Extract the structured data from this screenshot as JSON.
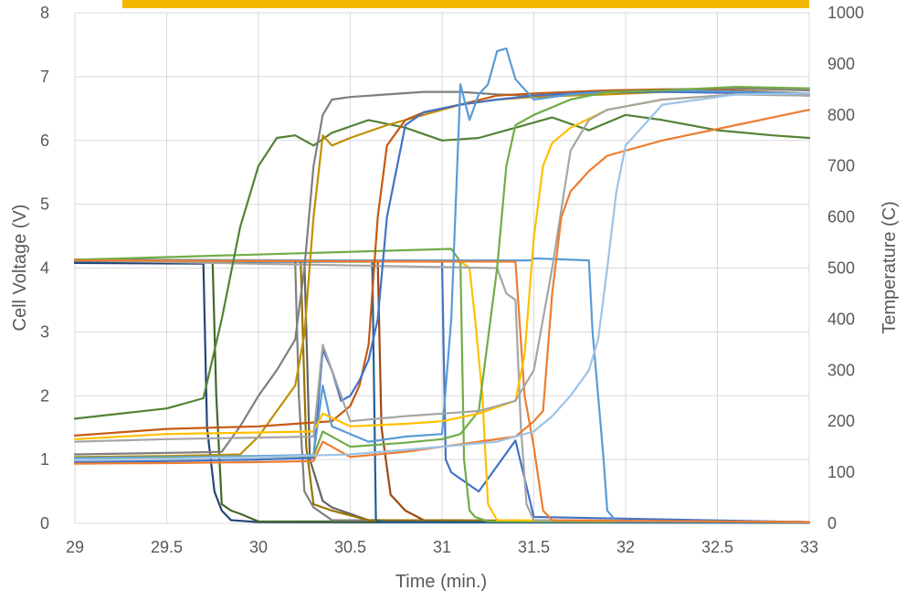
{
  "chart_data": {
    "type": "line",
    "title": "",
    "xlabel": "Time (min.)",
    "ylabel": "Cell Voltage (V)",
    "y2label": "Temperature (C)",
    "xlim": [
      29,
      33
    ],
    "ylim": [
      0,
      8
    ],
    "y2lim": [
      0,
      1000
    ],
    "grid": true,
    "legend": "none",
    "x_ticks": [
      "29",
      "29.5",
      "30",
      "30.5",
      "31",
      "31.5",
      "32",
      "32.5",
      "33"
    ],
    "y_ticks": [
      "0",
      "1",
      "2",
      "3",
      "4",
      "5",
      "6",
      "7",
      "8"
    ],
    "y2_ticks": [
      "0",
      "100",
      "200",
      "300",
      "400",
      "500",
      "600",
      "700",
      "800",
      "900",
      "1000"
    ],
    "banner_color": "#f5b800",
    "series": [
      {
        "axis": "left",
        "color": "#264478",
        "x": [
          29,
          29.7,
          29.72,
          29.76,
          29.8,
          29.85,
          30.0,
          33
        ],
        "y": [
          4.08,
          4.07,
          1.5,
          0.5,
          0.2,
          0.05,
          0.02,
          0.01
        ]
      },
      {
        "axis": "left",
        "color": "#43682b",
        "x": [
          29,
          29.75,
          29.77,
          29.8,
          29.85,
          29.9,
          30.0,
          33
        ],
        "y": [
          4.12,
          4.1,
          2.0,
          0.3,
          0.2,
          0.15,
          0.03,
          0.02
        ]
      },
      {
        "axis": "left",
        "color": "#7f7f7f",
        "x": [
          29,
          30.2,
          30.22,
          30.25,
          30.3,
          30.4,
          33
        ],
        "y": [
          4.12,
          4.11,
          2.0,
          0.5,
          0.25,
          0.05,
          0.02
        ]
      },
      {
        "axis": "left",
        "color": "#9e480e",
        "x": [
          29,
          30.65,
          30.67,
          30.72,
          30.8,
          30.9,
          33
        ],
        "y": [
          4.13,
          4.11,
          1.5,
          0.45,
          0.2,
          0.05,
          0.02
        ]
      },
      {
        "axis": "left",
        "color": "#636363",
        "x": [
          29,
          30.25,
          30.28,
          30.35,
          30.4,
          30.6,
          33
        ],
        "y": [
          4.13,
          4.12,
          1.0,
          0.35,
          0.25,
          0.05,
          0.02
        ]
      },
      {
        "axis": "left",
        "color": "#997300",
        "x": [
          29,
          30.23,
          30.26,
          30.3,
          30.4,
          30.6,
          33
        ],
        "y": [
          4.12,
          4.11,
          1.2,
          0.3,
          0.2,
          0.05,
          0.02
        ]
      },
      {
        "axis": "left",
        "color": "#255e91",
        "x": [
          29,
          30.62,
          30.64,
          30.66,
          30.7,
          30.9,
          33
        ],
        "y": [
          4.1,
          4.1,
          0.05,
          0.03,
          0.02,
          0.02,
          0.01
        ]
      },
      {
        "axis": "left",
        "color": "#4472c4",
        "x": [
          29,
          31.0,
          31.02,
          31.05,
          31.1,
          31.2,
          31.4,
          31.5,
          33
        ],
        "y": [
          4.12,
          4.1,
          1.0,
          0.8,
          0.7,
          0.5,
          1.3,
          0.1,
          0.02
        ]
      },
      {
        "axis": "left",
        "color": "#70ad47",
        "x": [
          29,
          31.05,
          31.1,
          31.12,
          31.15,
          31.18,
          31.25,
          33
        ],
        "y": [
          4.13,
          4.3,
          4.1,
          1.0,
          0.2,
          0.1,
          0.03,
          0.02
        ]
      },
      {
        "axis": "left",
        "color": "#ffc000",
        "x": [
          29,
          31.1,
          31.15,
          31.18,
          31.22,
          31.25,
          31.3,
          33
        ],
        "y": [
          4.12,
          4.1,
          4.0,
          3.2,
          2.0,
          0.3,
          0.05,
          0.02
        ]
      },
      {
        "axis": "left",
        "color": "#a5a5a5",
        "x": [
          29,
          31.3,
          31.35,
          31.4,
          31.43,
          31.46,
          31.5,
          33
        ],
        "y": [
          4.12,
          4.0,
          3.6,
          3.5,
          1.5,
          0.3,
          0.05,
          0.02
        ]
      },
      {
        "axis": "left",
        "color": "#5b9bd5",
        "x": [
          29,
          31.48,
          31.5,
          31.52,
          31.8,
          31.82,
          31.85,
          31.88,
          31.9,
          31.95,
          33
        ],
        "y": [
          4.12,
          4.12,
          4.15,
          4.15,
          4.12,
          3.0,
          2.0,
          1.0,
          0.2,
          0.03,
          0.02
        ]
      },
      {
        "axis": "left",
        "color": "#ed7d31",
        "x": [
          29,
          31.4,
          31.45,
          31.5,
          31.55,
          31.6,
          33
        ],
        "y": [
          4.12,
          4.1,
          2.0,
          1.2,
          0.2,
          0.05,
          0.02
        ]
      },
      {
        "axis": "right",
        "color": "#548235",
        "x": [
          29,
          29.5,
          29.7,
          29.8,
          29.9,
          30.0,
          30.1,
          30.2,
          30.3,
          30.4,
          30.6,
          30.8,
          31.0,
          31.2,
          31.4,
          31.6,
          31.8,
          32.0,
          32.2,
          32.5,
          32.8,
          33
        ],
        "y": [
          205,
          225,
          245,
          400,
          580,
          700,
          755,
          760,
          740,
          765,
          790,
          775,
          750,
          755,
          775,
          795,
          770,
          800,
          790,
          770,
          760,
          755
        ]
      },
      {
        "axis": "right",
        "color": "#7f7f7f",
        "x": [
          29,
          29.5,
          29.8,
          29.9,
          30.0,
          30.1,
          30.2,
          30.25,
          30.3,
          30.35,
          30.4,
          30.5,
          30.7,
          30.9,
          31.1,
          31.3,
          31.5,
          31.7,
          31.9,
          32.2,
          32.6,
          33
        ],
        "y": [
          135,
          138,
          140,
          190,
          250,
          300,
          360,
          500,
          700,
          800,
          830,
          835,
          840,
          845,
          845,
          840,
          838,
          840,
          845,
          850,
          852,
          848
        ]
      },
      {
        "axis": "right",
        "color": "#bf9000",
        "x": [
          29,
          29.5,
          29.9,
          30.0,
          30.1,
          30.2,
          30.25,
          30.3,
          30.35,
          30.4,
          30.5,
          30.7,
          30.9,
          31.1,
          31.3,
          31.5,
          31.7,
          31.9,
          32.2,
          32.6,
          33
        ],
        "y": [
          130,
          132,
          135,
          170,
          220,
          270,
          370,
          600,
          760,
          740,
          755,
          780,
          800,
          820,
          830,
          835,
          838,
          840,
          845,
          848,
          842
        ]
      },
      {
        "axis": "right",
        "color": "#c55a11",
        "x": [
          29,
          29.5,
          30.0,
          30.2,
          30.4,
          30.5,
          30.55,
          30.6,
          30.65,
          30.7,
          30.8,
          30.9,
          31.1,
          31.3,
          31.5,
          31.7,
          31.9,
          32.2,
          32.6,
          33
        ],
        "y": [
          172,
          185,
          190,
          195,
          200,
          230,
          270,
          350,
          600,
          740,
          790,
          805,
          820,
          838,
          842,
          845,
          848,
          850,
          848,
          840
        ]
      },
      {
        "axis": "right",
        "color": "#4472c4",
        "x": [
          29,
          29.5,
          30.0,
          30.3,
          30.35,
          30.4,
          30.45,
          30.5,
          30.55,
          30.6,
          30.65,
          30.7,
          30.8,
          30.9,
          31.1,
          31.3,
          31.5,
          31.7,
          31.9,
          32.2,
          32.6,
          33
        ],
        "y": [
          120,
          122,
          125,
          128,
          340,
          300,
          240,
          250,
          280,
          320,
          400,
          600,
          780,
          805,
          820,
          830,
          838,
          842,
          845,
          845,
          843,
          838
        ]
      },
      {
        "axis": "right",
        "color": "#5b9bd5",
        "x": [
          29,
          29.5,
          30.0,
          30.3,
          30.35,
          30.4,
          30.6,
          30.8,
          31.0,
          31.05,
          31.1,
          31.15,
          31.2,
          31.25,
          31.3,
          31.35,
          31.4,
          31.5,
          31.7,
          31.9,
          32.2,
          32.6,
          33
        ],
        "y": [
          128,
          130,
          132,
          134,
          270,
          190,
          160,
          170,
          175,
          400,
          860,
          790,
          840,
          860,
          925,
          930,
          870,
          830,
          840,
          845,
          848,
          846,
          842
        ]
      },
      {
        "axis": "right",
        "color": "#70ad47",
        "x": [
          29,
          29.5,
          30.0,
          30.3,
          30.35,
          30.5,
          30.8,
          31.0,
          31.1,
          31.2,
          31.3,
          31.35,
          31.4,
          31.5,
          31.7,
          31.9,
          32.2,
          32.6,
          33
        ],
        "y": [
          125,
          128,
          130,
          132,
          180,
          150,
          158,
          165,
          175,
          220,
          500,
          700,
          780,
          800,
          830,
          845,
          848,
          855,
          852
        ]
      },
      {
        "axis": "right",
        "color": "#ffc000",
        "x": [
          29,
          29.5,
          30.0,
          30.3,
          30.35,
          30.5,
          30.8,
          31.0,
          31.2,
          31.4,
          31.45,
          31.5,
          31.55,
          31.6,
          31.7,
          31.9,
          32.2,
          32.6,
          33
        ],
        "y": [
          165,
          175,
          178,
          180,
          215,
          190,
          195,
          200,
          215,
          240,
          330,
          560,
          700,
          745,
          775,
          810,
          830,
          840,
          838
        ]
      },
      {
        "axis": "right",
        "color": "#a5a5a5",
        "x": [
          29,
          29.5,
          30.0,
          30.3,
          30.35,
          30.5,
          30.8,
          31.0,
          31.2,
          31.4,
          31.5,
          31.6,
          31.7,
          31.8,
          31.9,
          32.2,
          32.6,
          33
        ],
        "y": [
          160,
          165,
          168,
          170,
          350,
          200,
          210,
          215,
          220,
          240,
          300,
          500,
          730,
          790,
          810,
          830,
          840,
          838
        ]
      },
      {
        "axis": "right",
        "color": "#ed7d31",
        "x": [
          29,
          29.5,
          30.0,
          30.3,
          30.35,
          30.5,
          30.8,
          31.0,
          31.2,
          31.4,
          31.5,
          31.55,
          31.6,
          31.65,
          31.7,
          31.8,
          31.9,
          32.2,
          32.6,
          33
        ],
        "y": [
          117,
          118,
          120,
          122,
          160,
          130,
          140,
          150,
          160,
          170,
          200,
          220,
          450,
          600,
          650,
          690,
          720,
          750,
          780,
          810
        ]
      },
      {
        "axis": "right",
        "color": "#9dc3e6",
        "x": [
          29,
          29.5,
          30.0,
          30.5,
          31.0,
          31.3,
          31.5,
          31.6,
          31.7,
          31.8,
          31.85,
          31.9,
          31.95,
          32.0,
          32.2,
          32.6,
          33
        ],
        "y": [
          125,
          127,
          130,
          135,
          150,
          160,
          180,
          210,
          250,
          300,
          360,
          500,
          650,
          740,
          820,
          840,
          842
        ]
      }
    ]
  }
}
